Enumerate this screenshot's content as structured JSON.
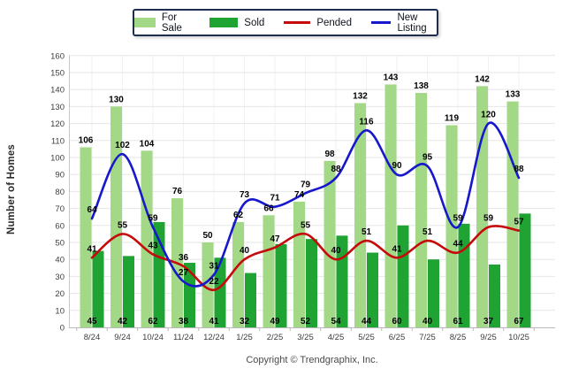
{
  "legend": {
    "items": [
      {
        "label": "For Sale",
        "swatch": "bar",
        "color": "#A3D887"
      },
      {
        "label": "Sold",
        "swatch": "bar",
        "color": "#1FA434"
      },
      {
        "label": "Pended",
        "swatch": "line",
        "color": "#C40A0A"
      },
      {
        "label": "New Listing",
        "swatch": "line",
        "color": "#1717CC"
      }
    ]
  },
  "y_axis_title": "Number of Homes",
  "footer": {
    "copyright": "Copyright © Trendgraphix, Inc."
  },
  "chart_data": {
    "type": "bar",
    "subtype": "grouped-bars-with-smooth-lines",
    "categories": [
      "8/24",
      "9/24",
      "10/24",
      "11/24",
      "12/24",
      "1/25",
      "2/25",
      "3/25",
      "4/25",
      "5/25",
      "6/25",
      "7/25",
      "8/25",
      "9/25",
      "10/25"
    ],
    "series": [
      {
        "name": "For Sale",
        "type": "bar",
        "color": "#A3D887",
        "values": [
          106,
          130,
          104,
          76,
          50,
          62,
          66,
          74,
          98,
          132,
          143,
          138,
          119,
          142,
          133
        ]
      },
      {
        "name": "Sold",
        "type": "bar",
        "color": "#1FA434",
        "values": [
          45,
          42,
          62,
          38,
          41,
          32,
          49,
          52,
          54,
          44,
          60,
          40,
          61,
          37,
          67
        ]
      },
      {
        "name": "Pended",
        "type": "line",
        "color": "#C40A0A",
        "values": [
          41,
          55,
          43,
          36,
          22,
          40,
          47,
          55,
          40,
          51,
          41,
          51,
          44,
          59,
          57
        ]
      },
      {
        "name": "New Listing",
        "type": "line",
        "color": "#1717CC",
        "values": [
          64,
          102,
          59,
          27,
          31,
          73,
          71,
          79,
          88,
          116,
          90,
          95,
          59,
          120,
          88
        ]
      }
    ],
    "title": "",
    "xlabel": "",
    "ylabel": "Number of Homes",
    "ylim": [
      0,
      160
    ],
    "ytick_step": 10,
    "grid": true,
    "legend_position": "top-center",
    "value_labels": true
  }
}
